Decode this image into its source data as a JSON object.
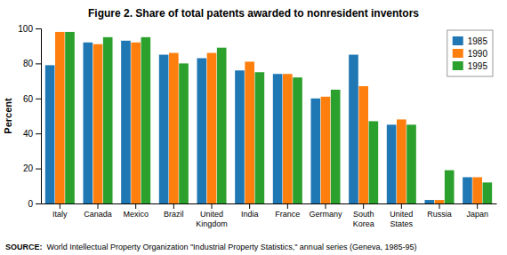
{
  "chart_data": {
    "type": "bar",
    "title": "Figure 2.  Share of total patents awarded to nonresident inventors",
    "ylabel": "Percent",
    "categories": [
      "Italy",
      "Canada",
      "Mexico",
      "Brazil",
      "United\nKingdom",
      "India",
      "France",
      "Germany",
      "South\nKorea",
      "United\nStates",
      "Russia",
      "Japan"
    ],
    "series": [
      {
        "name": "1985",
        "values": [
          79,
          92,
          93,
          85,
          83,
          76,
          74,
          60,
          85,
          45,
          2,
          15
        ]
      },
      {
        "name": "1990",
        "values": [
          98,
          91,
          92,
          86,
          86,
          81,
          74,
          61,
          67,
          48,
          2,
          15
        ]
      },
      {
        "name": "1995",
        "values": [
          98,
          95,
          95,
          80,
          89,
          75,
          72,
          65,
          47,
          45,
          19,
          12
        ]
      }
    ],
    "ylim": [
      0,
      100
    ],
    "yticks": [
      0,
      20,
      40,
      60,
      80,
      100
    ],
    "grid": false,
    "legend": "upper right",
    "annotations": [
      "SOURCE:",
      "World Intellectual Property Organization \"Industrial Property Statistics,\" annual series (Geneva, 1985-95)"
    ]
  }
}
